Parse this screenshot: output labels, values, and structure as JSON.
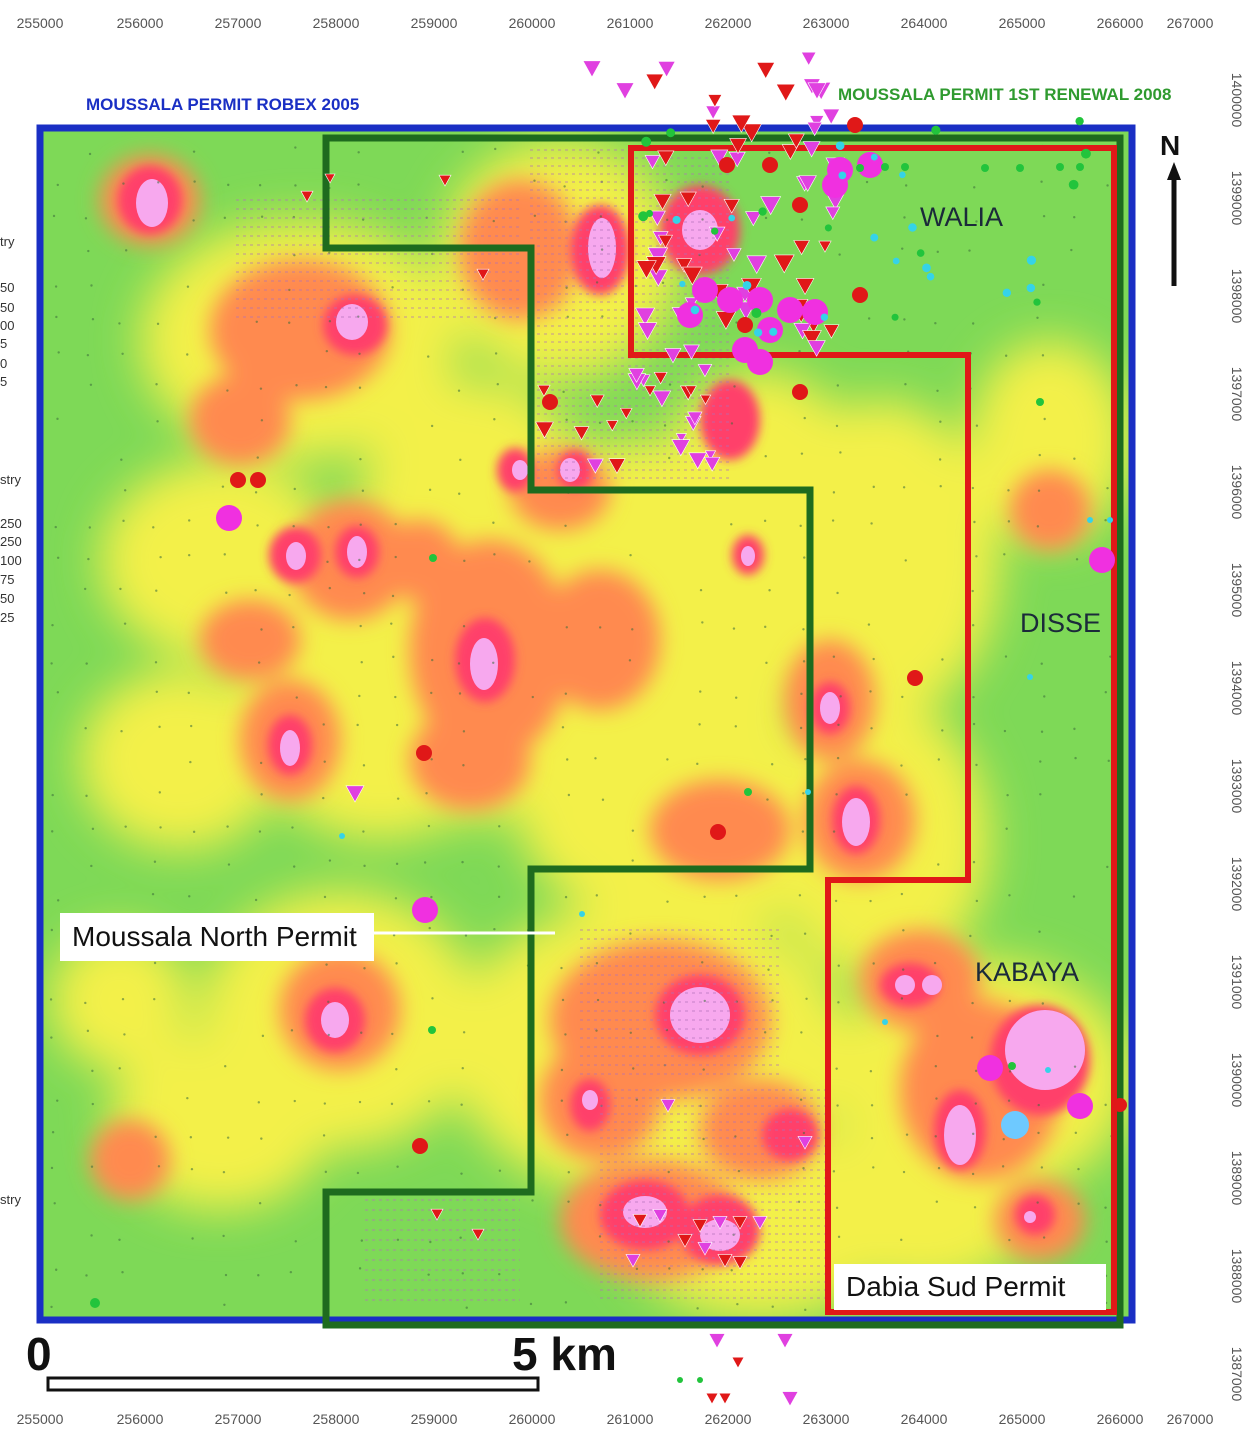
{
  "coords": {
    "x_top": [
      "255000",
      "256000",
      "257000",
      "258000",
      "259000",
      "260000",
      "261000",
      "262000",
      "263000",
      "264000",
      "265000",
      "266000",
      "267000"
    ],
    "x_bottom": [
      "255000",
      "256000",
      "257000",
      "258000",
      "259000",
      "260000",
      "261000",
      "262000",
      "263000",
      "264000",
      "265000",
      "266000",
      "267000"
    ],
    "y_right": [
      "1400000",
      "1399000",
      "1398000",
      "1397000",
      "1396000",
      "1395000",
      "1394000",
      "1393000",
      "1392000",
      "1391000",
      "1390000",
      "1389000",
      "1388000",
      "1387000"
    ]
  },
  "permits": {
    "robex_title": "MOUSSALA PERMIT ROBEX 2005",
    "renewal_title": "MOUSSALA PERMIT 1ST RENEWAL 2008",
    "north_permit": "Moussala North Permit",
    "dabia_permit": "Dabia Sud Permit"
  },
  "areas": {
    "walia": "WALIA",
    "disse": "DISSE",
    "kabaya": "KABAYA"
  },
  "north_arrow": {
    "label": "N"
  },
  "scale_bar": {
    "start": "0",
    "end": "5 km"
  },
  "legend_fragments": [
    "try",
    "50",
    "50",
    "00",
    "5",
    "0",
    "5",
    "stry",
    "250",
    "250",
    "100",
    "75",
    "50",
    "25",
    "stry"
  ],
  "colors": {
    "robex_border": "#1a2fc4",
    "renewal_border": "#1e6b1e",
    "dabia_border": "#e01818",
    "anomaly_high": "#ff4fd8",
    "anomaly_mid": "#ff8a5c",
    "background_low": "#5fd35f",
    "triangle_marker": "#e040e0",
    "red_marker": "#e01818"
  }
}
